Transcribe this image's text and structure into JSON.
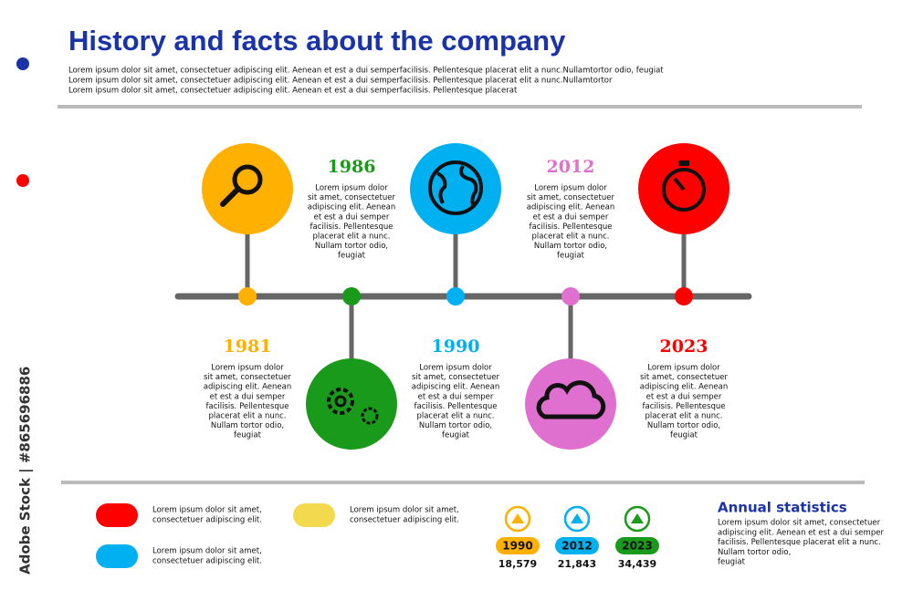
{
  "header": {
    "title": "History and facts about the company",
    "lines": [
      "Lorem ipsum dolor sit amet, consectetuer adipiscing elit. Aenean et est a dui semperfacilisis. Pellentesque placerat elit a nunc.Nullamtortor odio, feugiat",
      "Lorem ipsum dolor sit amet, consectetuer adipiscing elit. Aenean et est a dui semperfacilisis. Pellentesque placerat elit a nunc.Nullamtortor",
      "Lorem ipsum dolor sit amet, consectetuer adipiscing elit. Aenean et est a dui semperfacilisis. Pellentesque placerat"
    ]
  },
  "timeline": {
    "events": [
      {
        "year": "1981",
        "color": "#ffb000",
        "lines": [
          "Lorem ipsum dolor",
          "sit amet, consectetuer",
          "adipiscing elit. Aenean",
          "et est a dui semper",
          "facilisis. Pellentesque",
          "placerat elit a nunc.",
          "Nullam tortor odio,",
          "feugiat"
        ]
      },
      {
        "year": "1986",
        "color": "#1a9a1a",
        "lines": [
          "Lorem ipsum dolor",
          "sit amet, consectetuer",
          "adipiscing elit. Aenean",
          "et est a dui semper",
          "facilisis. Pellentesque",
          "placerat elit a nunc.",
          "Nullam tortor odio,",
          "feugiat"
        ]
      },
      {
        "year": "1990",
        "color": "#00b0f0",
        "lines": [
          "Lorem ipsum dolor",
          "sit amet, consectetuer",
          "adipiscing elit. Aenean",
          "et est a dui semper",
          "facilisis. Pellentesque",
          "placerat elit a nunc.",
          "Nullam tortor odio,",
          "feugiat"
        ]
      },
      {
        "year": "2012",
        "color": "#e070d0",
        "lines": [
          "Lorem ipsum dolor",
          "sit amet, consectetuer",
          "adipiscing elit. Aenean",
          "et est a dui semper",
          "facilisis. Pellentesque",
          "placerat elit a nunc.",
          "Nullam tortor odio,",
          "feugiat"
        ]
      },
      {
        "year": "2023",
        "color": "#ff0000",
        "lines": [
          "Lorem ipsum dolor",
          "sit amet, consectetuer",
          "adipiscing elit. Aenean",
          "et est a dui semper",
          "facilisis. Pellentesque",
          "placerat elit a nunc.",
          "Nullam tortor odio,",
          "feugiat"
        ]
      }
    ]
  },
  "legend": [
    {
      "color": "#ff0000",
      "lines": [
        "Lorem ipsum dolor sit amet,",
        "consectetuer adipiscing elit."
      ]
    },
    {
      "color": "#00b0f0",
      "lines": [
        "Lorem ipsum dolor sit amet,",
        "consectetuer adipiscing elit."
      ]
    },
    {
      "color": "#f2d94e",
      "lines": [
        "Lorem ipsum dolor sit amet,",
        "consectetuer adipiscing elit."
      ]
    }
  ],
  "stats": {
    "title": "Annual statistics",
    "lines": [
      "Lorem ipsum dolor sit amet, consectetuer",
      "adipiscing elit. Aenean et est a dui semper",
      "facilisis. Pellentesque placerat elit a nunc.",
      "Nullam tortor odio,",
      "feugiat"
    ],
    "items": [
      {
        "year": "1990",
        "value": "18,579",
        "color": "#ffb000"
      },
      {
        "year": "2012",
        "value": "21,843",
        "color": "#00b0f0"
      },
      {
        "year": "2023",
        "value": "34,439",
        "color": "#1a9a1a"
      }
    ]
  },
  "watermark": "Adobe Stock | #865696886"
}
